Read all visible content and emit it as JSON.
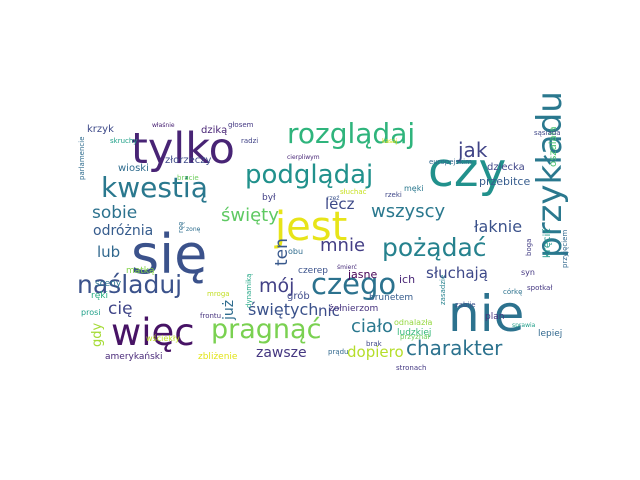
{
  "words": [
    {
      "text": "się",
      "color": "#3b528b"
    },
    {
      "text": "nie",
      "color": "#2c728e"
    },
    {
      "text": "czy",
      "color": "#21918c"
    },
    {
      "text": "tylko",
      "color": "#482475"
    },
    {
      "text": "jest",
      "color": "#e7e419"
    },
    {
      "text": "więc",
      "color": "#471365"
    },
    {
      "text": "przykładu",
      "color": "#2a788e"
    },
    {
      "text": "rozglądaj",
      "color": "#2fb47c"
    },
    {
      "text": "podglądaj",
      "color": "#21918c"
    },
    {
      "text": "kwestią",
      "color": "#2a788e"
    },
    {
      "text": "czego",
      "color": "#2c728e"
    },
    {
      "text": "pragnąć",
      "color": "#7ad151"
    },
    {
      "text": "pożądać",
      "color": "#26828e"
    },
    {
      "text": "naśladuj",
      "color": "#3b528b"
    },
    {
      "text": "charakter",
      "color": "#2c728e"
    },
    {
      "text": "jak",
      "color": "#414487"
    },
    {
      "text": "mnie",
      "color": "#433e85"
    },
    {
      "text": "wszyscy",
      "color": "#2a788e"
    },
    {
      "text": "święty",
      "color": "#5ec962"
    },
    {
      "text": "sobie",
      "color": "#2c728e"
    },
    {
      "text": "mój",
      "color": "#424086"
    },
    {
      "text": "ciało",
      "color": "#2a788e"
    },
    {
      "text": "słuchają",
      "color": "#3e4989"
    },
    {
      "text": "świętych",
      "color": "#3b528b"
    },
    {
      "text": "ten",
      "color": "#38588c"
    },
    {
      "text": "lecz",
      "color": "#3e4a89"
    },
    {
      "text": "łaknie",
      "color": "#3b528b"
    },
    {
      "text": "odróżnia",
      "color": "#365c8d"
    },
    {
      "text": "cię",
      "color": "#404688"
    },
    {
      "text": "nic",
      "color": "#3d4d8a"
    },
    {
      "text": "zawsze",
      "color": "#453781"
    },
    {
      "text": "dopiero",
      "color": "#b5de2b"
    },
    {
      "text": "lub",
      "color": "#31688e"
    },
    {
      "text": "już",
      "color": "#2f6c8e"
    },
    {
      "text": "gdy",
      "color": "#a5db36"
    },
    {
      "text": "ich",
      "color": "#482475"
    },
    {
      "text": "jasne",
      "color": "#440154"
    },
    {
      "text": "przebitce",
      "color": "#365c8d"
    },
    {
      "text": "dziecka",
      "color": "#404688"
    },
    {
      "text": "krzyk",
      "color": "#3e4a89"
    },
    {
      "text": "dziką",
      "color": "#482475"
    },
    {
      "text": "złorzeczy",
      "color": "#3e4a89"
    },
    {
      "text": "wioski",
      "color": "#2f6c8e"
    },
    {
      "text": "był",
      "color": "#424086"
    },
    {
      "text": "sceny",
      "color": "#2c728e"
    },
    {
      "text": "ręki",
      "color": "#28ae80"
    },
    {
      "text": "matką",
      "color": "#84d44b"
    },
    {
      "text": "czerep",
      "color": "#3b528b"
    },
    {
      "text": "grób",
      "color": "#3e4a89"
    },
    {
      "text": "brunetem",
      "color": "#365c8d"
    },
    {
      "text": "żołnierzom",
      "color": "#46327e"
    },
    {
      "text": "ludzkiej",
      "color": "#35b779"
    },
    {
      "text": "plan",
      "color": "#46337e"
    },
    {
      "text": "lepiej",
      "color": "#31688e"
    },
    {
      "text": "amerykański",
      "color": "#482878"
    },
    {
      "text": "zbliżenie",
      "color": "#e2e418"
    },
    {
      "text": "wściekły",
      "color": "#bddf26"
    },
    {
      "text": "frontu",
      "color": "#46337e"
    },
    {
      "text": "prądu",
      "color": "#31688e"
    },
    {
      "text": "stronach",
      "color": "#443983"
    },
    {
      "text": "syn",
      "color": "#453882"
    },
    {
      "text": "kręcić",
      "color": "#1f988b"
    },
    {
      "text": "oszalała",
      "color": "#4ac16d"
    },
    {
      "text": "sąsiada",
      "color": "#3f4788"
    },
    {
      "text": "europejskim",
      "color": "#31688e"
    },
    {
      "text": "głosem",
      "color": "#443983"
    },
    {
      "text": "właśnie",
      "color": "#482173"
    },
    {
      "text": "skruchy",
      "color": "#1fa088"
    },
    {
      "text": "parlamencie",
      "color": "#2f6c8e"
    },
    {
      "text": "bracie",
      "color": "#6ccd5a"
    },
    {
      "text": "radzi",
      "color": "#414487"
    },
    {
      "text": "cierpliwym",
      "color": "#482677"
    },
    {
      "text": "męki",
      "color": "#2a788e"
    },
    {
      "text": "słuchać",
      "color": "#c8e020"
    },
    {
      "text": "rzeki",
      "color": "#3f4788"
    },
    {
      "text": "zonę",
      "color": "#2e6e8e"
    },
    {
      "text": "obu",
      "color": "#2f6c8e"
    },
    {
      "text": "dynamiką",
      "color": "#21a685"
    },
    {
      "text": "mroga",
      "color": "#c2df23"
    },
    {
      "text": "śmierć",
      "color": "#472c7a"
    },
    {
      "text": "zabije",
      "color": "#3b528b"
    },
    {
      "text": "córkę",
      "color": "#2c728e"
    },
    {
      "text": "spotkał",
      "color": "#453882"
    },
    {
      "text": "odnalazła",
      "color": "#95d840"
    },
    {
      "text": "zasadzie",
      "color": "#26828e"
    },
    {
      "text": "przyznał",
      "color": "#6ccd5a"
    },
    {
      "text": "boga",
      "color": "#433e85"
    },
    {
      "text": "przyjęciem",
      "color": "#31688e"
    },
    {
      "text": "sprawia",
      "color": "#1f9e89"
    },
    {
      "text": "brak",
      "color": "#3f4788"
    },
    {
      "text": "prosi",
      "color": "#1fa088"
    },
    {
      "text": "ręę",
      "color": "#2e6e8e"
    },
    {
      "text": "rzeź",
      "color": "#3b528b"
    },
    {
      "text": "kasaj",
      "color": "#d8e219"
    }
  ]
}
